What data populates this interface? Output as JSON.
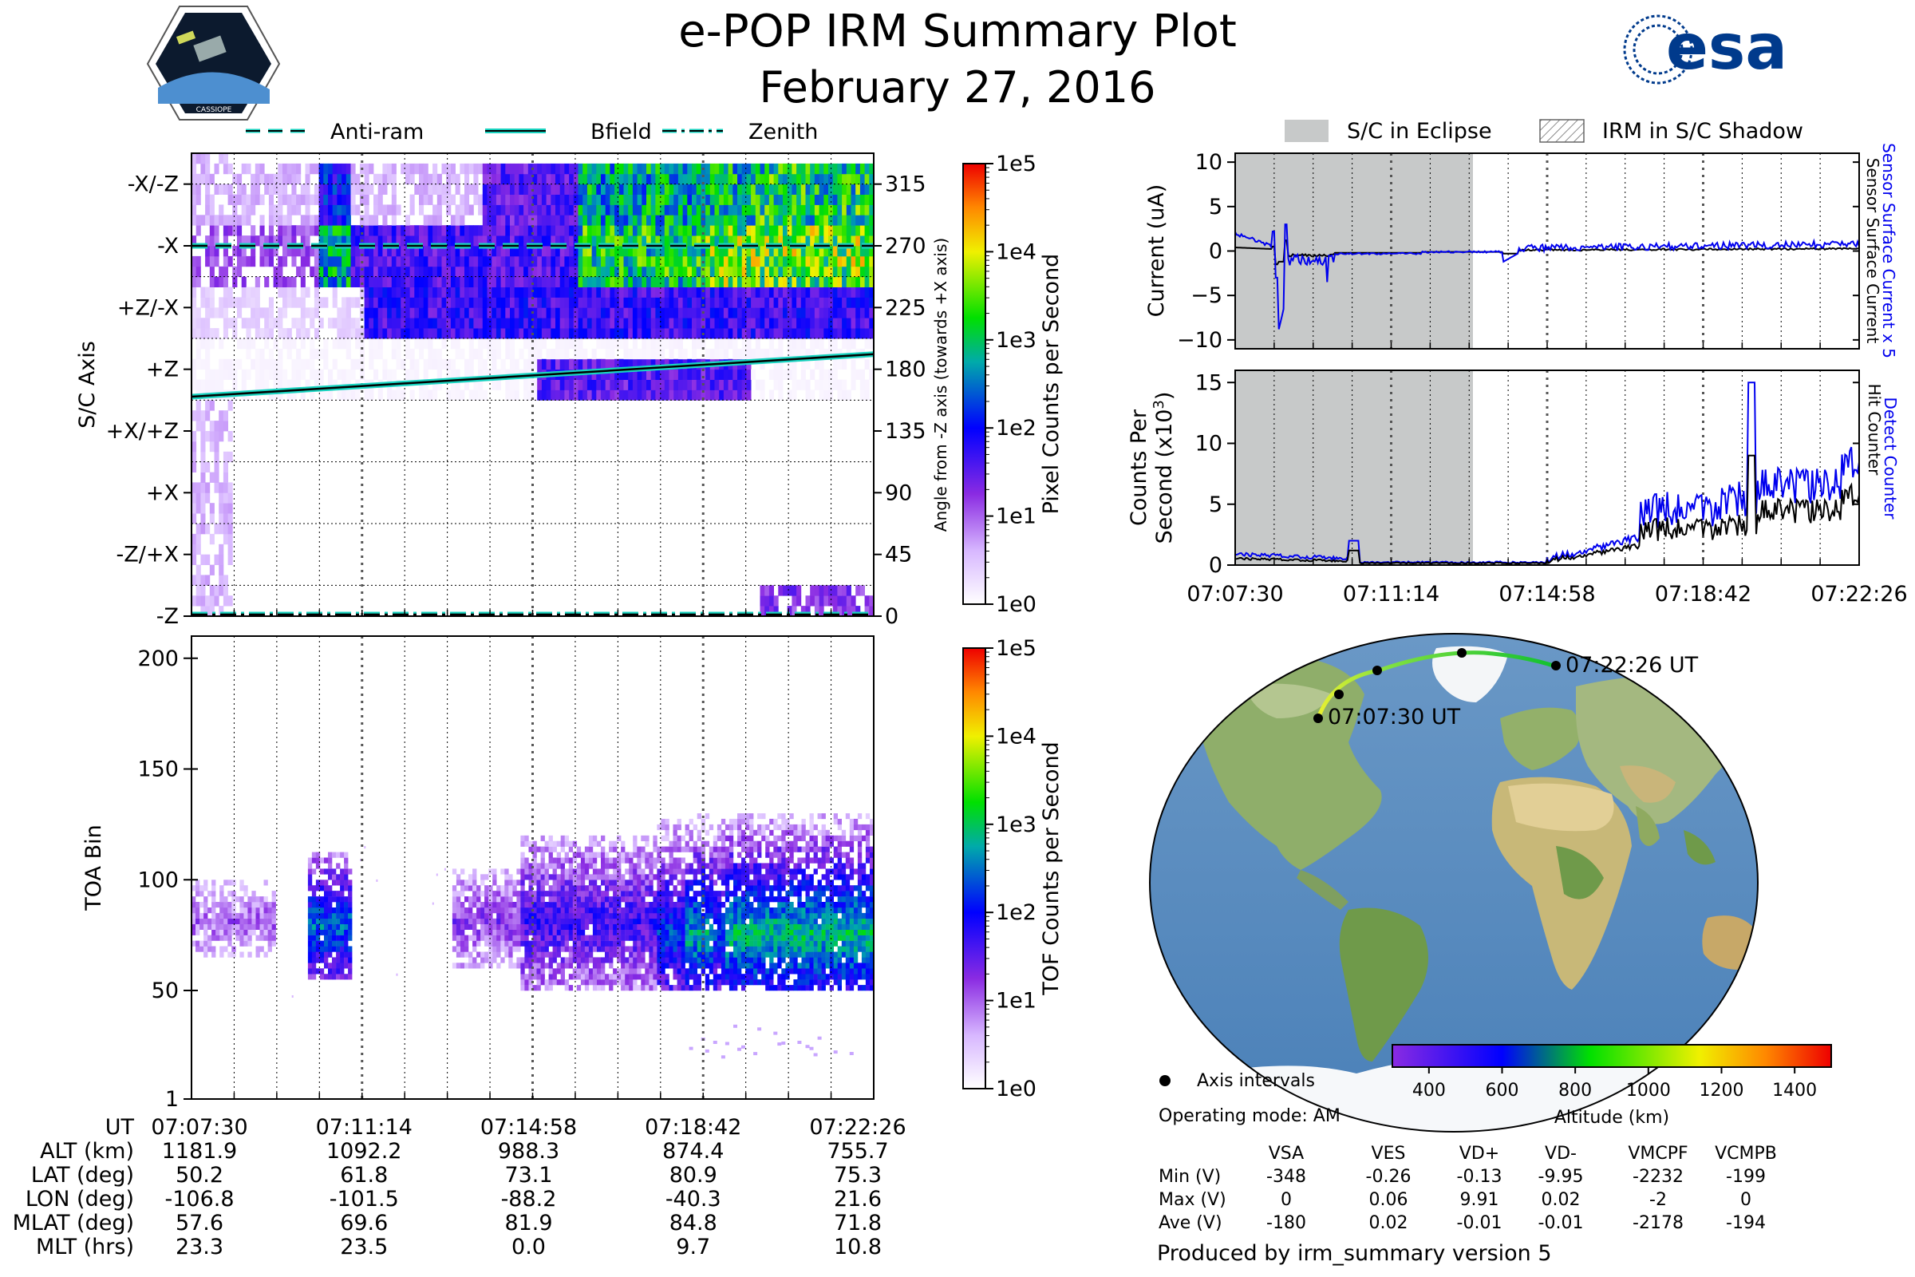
{
  "title": "e-POP IRM Summary Plot",
  "date": "February 27, 2016",
  "esa_logo_text": "esa",
  "cassiope_logo_text": "CASSIOPE",
  "legend_top_left": [
    "Anti-ram",
    "Bfield",
    "Zenith"
  ],
  "legend_top_right": [
    "S/C in Eclipse",
    "IRM in S/C Shadow"
  ],
  "footer": "Produced by irm_summary version 5",
  "colors": {
    "eclipse": "#c7c9c9",
    "trace_blue": "#0000ee",
    "line_teal": "#19d3c0"
  },
  "chart_data": [
    {
      "type": "heatmap",
      "name": "sc-axis-panel",
      "ylabel": "S/C Axis",
      "ylabel_right": "Angle from -Z axis (towards +X axis)",
      "y_ticks_left": [
        "-X/-Z",
        "-X",
        "+Z/-X",
        "+Z",
        "+X/+Z",
        "+X",
        "-Z/+X",
        "-Z"
      ],
      "y_ticks_right": [
        "315",
        "270",
        "225",
        "180",
        "135",
        "90",
        "45",
        "0"
      ],
      "ylim": [
        0,
        337.5
      ],
      "colorbar_label": "Pixel Counts per Second",
      "colorbar_ticks": [
        "1e5",
        "1e4",
        "1e3",
        "1e2",
        "1e1",
        "1e0"
      ],
      "lines": {
        "anti_ram_deg": 270,
        "zenith_deg": 0,
        "bfield_start_deg": 160,
        "bfield_end_deg": 191
      }
    },
    {
      "type": "heatmap",
      "name": "toa-panel",
      "ylabel": "TOA Bin",
      "y_ticks": [
        "200",
        "150",
        "100",
        "50",
        "1"
      ],
      "ylim": [
        1,
        210
      ],
      "colorbar_label": "TOF Counts per Second",
      "colorbar_ticks": [
        "1e5",
        "1e4",
        "1e3",
        "1e2",
        "1e1",
        "1e0"
      ]
    },
    {
      "type": "line",
      "name": "current-panel",
      "ylabel": "Current (uA)",
      "y_ticks": [
        "10",
        "5",
        "0",
        "−5",
        "−10"
      ],
      "ylim": [
        -11,
        11
      ],
      "right_labels": [
        "Sensor Surface Current x 5",
        "Sensor Surface Current"
      ],
      "eclipse_minutes": [
        0,
        7.07
      ]
    },
    {
      "type": "line",
      "name": "counts-panel",
      "ylabel": [
        "Counts Per",
        "Second (x10",
        "3",
        ")"
      ],
      "y_ticks": [
        "15",
        "10",
        "5",
        "0"
      ],
      "ylim": [
        0,
        16
      ],
      "right_labels": [
        "Detect Counter",
        "Hit Counter"
      ],
      "x_ticks": [
        "07:07:30",
        "07:11:14",
        "07:14:58",
        "07:18:42",
        "07:22:26"
      ]
    }
  ],
  "ephemeris": {
    "rows": [
      {
        "label": "UT",
        "values": [
          "07:07:30",
          "07:11:14",
          "07:14:58",
          "07:18:42",
          "07:22:26"
        ]
      },
      {
        "label": "ALT (km)",
        "values": [
          "1181.9",
          "1092.2",
          "988.3",
          "874.4",
          "755.7"
        ]
      },
      {
        "label": "LAT (deg)",
        "values": [
          "50.2",
          "61.8",
          "73.1",
          "80.9",
          "75.3"
        ]
      },
      {
        "label": "LON (deg)",
        "values": [
          "-106.8",
          "-101.5",
          "-88.2",
          "-40.3",
          "21.6"
        ]
      },
      {
        "label": "MLAT (deg)",
        "values": [
          "57.6",
          "69.6",
          "81.9",
          "84.8",
          "71.8"
        ]
      },
      {
        "label": "MLT (hrs)",
        "values": [
          "23.3",
          "23.5",
          "0.0",
          "9.7",
          "10.8"
        ]
      }
    ]
  },
  "map": {
    "start_label": "07:07:30 UT",
    "end_label": "07:22:26 UT",
    "legend_label": "Axis intervals",
    "mode_label": "Operating mode: AM",
    "altitude_label": "Altitude (km)",
    "altitude_ticks": [
      "400",
      "600",
      "800",
      "1000",
      "1200",
      "1400"
    ]
  },
  "voltages": {
    "columns": [
      "VSA",
      "VES",
      "VD+",
      "VD-",
      "VMCPF",
      "VCMPB"
    ],
    "rows": [
      {
        "label": "Min (V)",
        "values": [
          "-348",
          "-0.26",
          "-0.13",
          "-9.95",
          "-2232",
          "-199"
        ]
      },
      {
        "label": "Max (V)",
        "values": [
          "0",
          "0.06",
          "9.91",
          "0.02",
          "-2",
          "0"
        ]
      },
      {
        "label": "Ave (V)",
        "values": [
          "-180",
          "0.02",
          "-0.01",
          "-0.01",
          "-2178",
          "-194"
        ]
      }
    ]
  }
}
